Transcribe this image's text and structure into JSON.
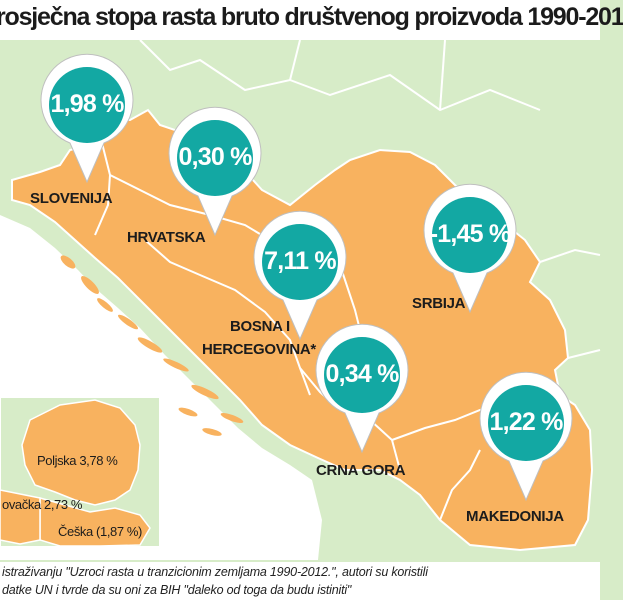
{
  "title": "rosječna stopa rasta bruto društvenog proizvoda  1990-201",
  "countries": [
    {
      "id": "slovenija",
      "label": "SLOVENIJA",
      "value": "1,98 %"
    },
    {
      "id": "hrvatska",
      "label": "HRVATSKA",
      "value": "0,30 %"
    },
    {
      "id": "bih",
      "label_line1": "BOSNA I",
      "label_line2": "HERCEGOVINA*",
      "value": "7,11 %"
    },
    {
      "id": "srbija",
      "label": "SRBIJA",
      "value": "-1,45 %"
    },
    {
      "id": "crna-gora",
      "label": "CRNA GORA",
      "value": "0,34 %"
    },
    {
      "id": "makedonija",
      "label": "MAKEDONIJA",
      "value": "1,22 %"
    }
  ],
  "inset": [
    {
      "label": "Poljska  3,78 %"
    },
    {
      "label": "ovačka 2,73 %"
    },
    {
      "label": "Češka  (1,87 %)"
    }
  ],
  "footer": {
    "line1": "istraživanju \"Uzroci rasta u tranzicionim zemljama 1990-2012.\", autori su koristili",
    "line2": "datke UN i tvrde da su oni za BIH \"daleko od toga da budu istiniti\""
  },
  "colors": {
    "land": "#f8b25f",
    "background": "#d7ecc8",
    "sea": "#ffffff",
    "pin": "#13a8a3",
    "borders": "#ffffff"
  }
}
